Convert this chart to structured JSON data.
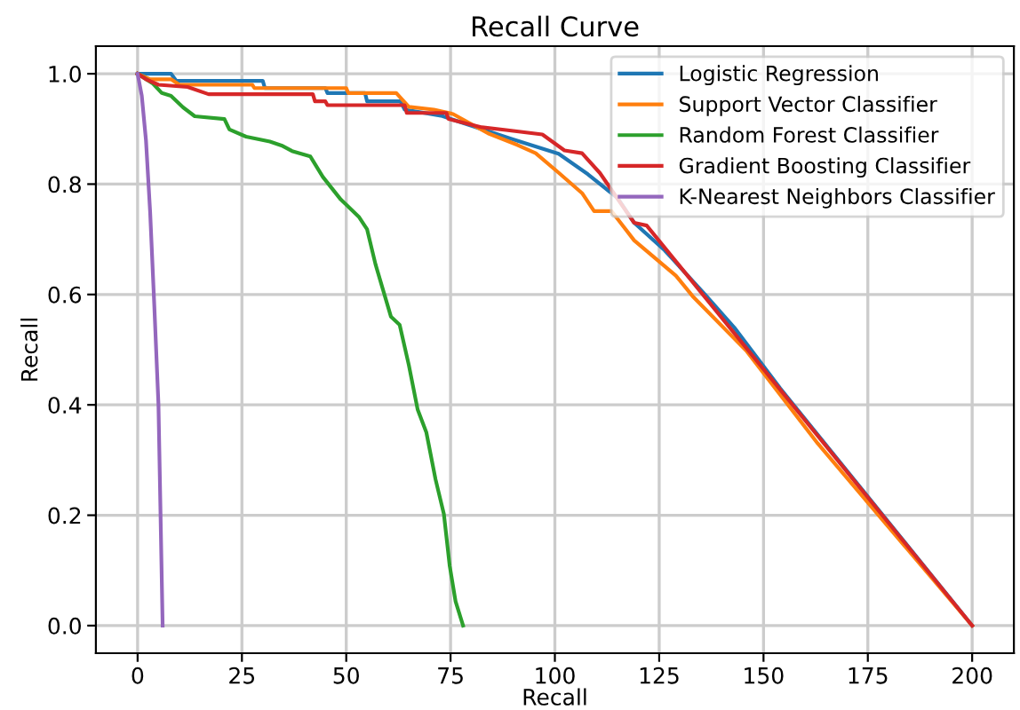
{
  "chart_data": {
    "type": "line",
    "title": "Recall Curve",
    "xlabel": "Recall",
    "ylabel": "Recall",
    "xlim": [
      -10,
      210
    ],
    "ylim": [
      -0.05,
      1.05
    ],
    "xticks": [
      0,
      25,
      50,
      75,
      100,
      125,
      150,
      175,
      200
    ],
    "yticks": [
      {
        "value": 0,
        "label": "0.0"
      },
      0.2,
      0.4,
      0.6,
      0.8,
      {
        "value": 1,
        "label": "1.0"
      }
    ],
    "grid": true,
    "legend": "top right",
    "line_style": "solid",
    "series": [
      {
        "name": "Logistic Regression",
        "color": "#1f77b4",
        "x": [
          0,
          8,
          9.3,
          30,
          30.5,
          45,
          45.5,
          54.5,
          55,
          63,
          64,
          72.7,
          89.6,
          100.9,
          107.9,
          115,
          119,
          126.3,
          136,
          143,
          154,
          200
        ],
        "values": [
          1,
          1,
          0.987,
          0.987,
          0.974,
          0.974,
          0.965,
          0.965,
          0.95,
          0.95,
          0.935,
          0.924,
          0.882,
          0.855,
          0.818,
          0.775,
          0.73,
          0.68,
          0.6,
          0.54,
          0.43,
          0
        ]
      },
      {
        "name": "Support Vector Classifier",
        "color": "#ff7f0e",
        "x": [
          0,
          3,
          8,
          10,
          27.5,
          28,
          50,
          50.5,
          62,
          65,
          71,
          75.6,
          84,
          91,
          95.4,
          101,
          106.6,
          109.4,
          113.6,
          119,
          129,
          133,
          146,
          163,
          200
        ],
        "values": [
          1,
          0.99,
          0.99,
          0.98,
          0.98,
          0.974,
          0.974,
          0.965,
          0.965,
          0.94,
          0.935,
          0.927,
          0.892,
          0.871,
          0.856,
          0.82,
          0.783,
          0.751,
          0.751,
          0.698,
          0.634,
          0.597,
          0.497,
          0.33,
          0
        ]
      },
      {
        "name": "Random Forest Classifier",
        "color": "#2ca02c",
        "x": [
          0,
          3.7,
          5.8,
          8,
          10.9,
          13.7,
          20.8,
          22,
          26,
          31.7,
          34.5,
          37,
          41.4,
          44.4,
          48.7,
          53,
          55,
          57,
          60.7,
          62.8,
          65,
          67.1,
          69.2,
          71.4,
          73.4,
          74.8,
          76.2,
          78
        ],
        "values": [
          1,
          0.982,
          0.965,
          0.96,
          0.939,
          0.923,
          0.918,
          0.899,
          0.886,
          0.877,
          0.87,
          0.86,
          0.85,
          0.813,
          0.772,
          0.741,
          0.718,
          0.655,
          0.56,
          0.545,
          0.472,
          0.392,
          0.35,
          0.265,
          0.202,
          0.108,
          0.044,
          0
        ]
      },
      {
        "name": "Gradient Boosting Classifier",
        "color": "#d62728",
        "x": [
          0,
          2,
          5,
          12,
          17,
          42,
          42.5,
          45,
          45.5,
          64,
          64.5,
          74,
          74.5,
          82.5,
          88.3,
          97,
          102.3,
          106.5,
          110.8,
          119,
          122,
          200
        ],
        "values": [
          1,
          0.99,
          0.98,
          0.976,
          0.963,
          0.963,
          0.95,
          0.95,
          0.943,
          0.943,
          0.929,
          0.929,
          0.918,
          0.903,
          0.898,
          0.89,
          0.861,
          0.856,
          0.82,
          0.73,
          0.725,
          0
        ]
      },
      {
        "name": "K-Nearest Neighbors Classifier",
        "color": "#9467bd",
        "x": [
          0,
          1,
          2,
          3,
          4,
          5,
          6
        ],
        "values": [
          1,
          0.96,
          0.88,
          0.75,
          0.58,
          0.4,
          0
        ]
      }
    ]
  }
}
